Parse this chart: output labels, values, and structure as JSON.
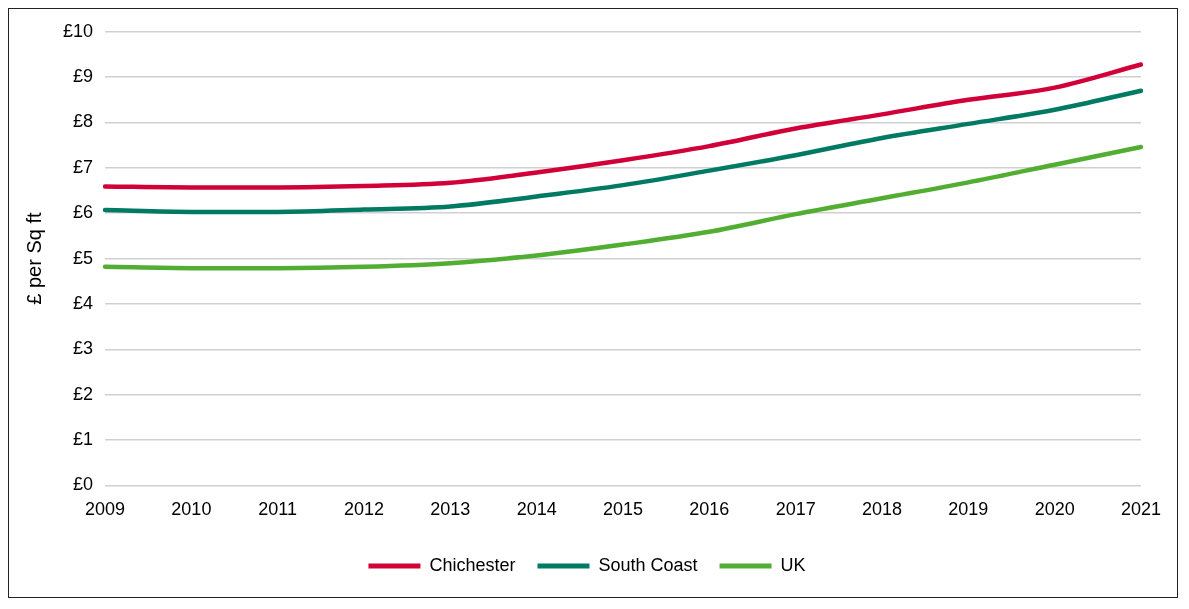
{
  "chart_data": {
    "type": "line",
    "ylabel": "£ per Sq ft",
    "categories": [
      "2009",
      "2010",
      "2011",
      "2012",
      "2013",
      "2014",
      "2015",
      "2016",
      "2017",
      "2018",
      "2019",
      "2020",
      "2021"
    ],
    "series": [
      {
        "name": "Chichester",
        "color": "#d20038",
        "values": [
          6.59,
          6.57,
          6.57,
          6.6,
          6.67,
          6.9,
          7.17,
          7.48,
          7.87,
          8.18,
          8.5,
          8.77,
          9.28
        ]
      },
      {
        "name": "South Coast",
        "color": "#007a63",
        "values": [
          6.07,
          6.03,
          6.03,
          6.08,
          6.15,
          6.37,
          6.62,
          6.94,
          7.28,
          7.66,
          7.97,
          8.28,
          8.7
        ]
      },
      {
        "name": "UK",
        "color": "#52ae32",
        "values": [
          4.82,
          4.79,
          4.79,
          4.82,
          4.9,
          5.07,
          5.31,
          5.59,
          5.98,
          6.33,
          6.68,
          7.07,
          7.46
        ]
      }
    ],
    "ylim": [
      0,
      10
    ],
    "yticks": [
      {
        "value": 0,
        "label": "£0"
      },
      {
        "value": 1,
        "label": "£1"
      },
      {
        "value": 2,
        "label": "£2"
      },
      {
        "value": 3,
        "label": "£3"
      },
      {
        "value": 4,
        "label": "£4"
      },
      {
        "value": 5,
        "label": "£5"
      },
      {
        "value": 6,
        "label": "£6"
      },
      {
        "value": 7,
        "label": "£7"
      },
      {
        "value": 8,
        "label": "£8"
      },
      {
        "value": 9,
        "label": "£9"
      },
      {
        "value": 10,
        "label": "£10"
      }
    ],
    "grid": "y",
    "legend": "bottom",
    "marker": "none",
    "line_style": "solid"
  }
}
